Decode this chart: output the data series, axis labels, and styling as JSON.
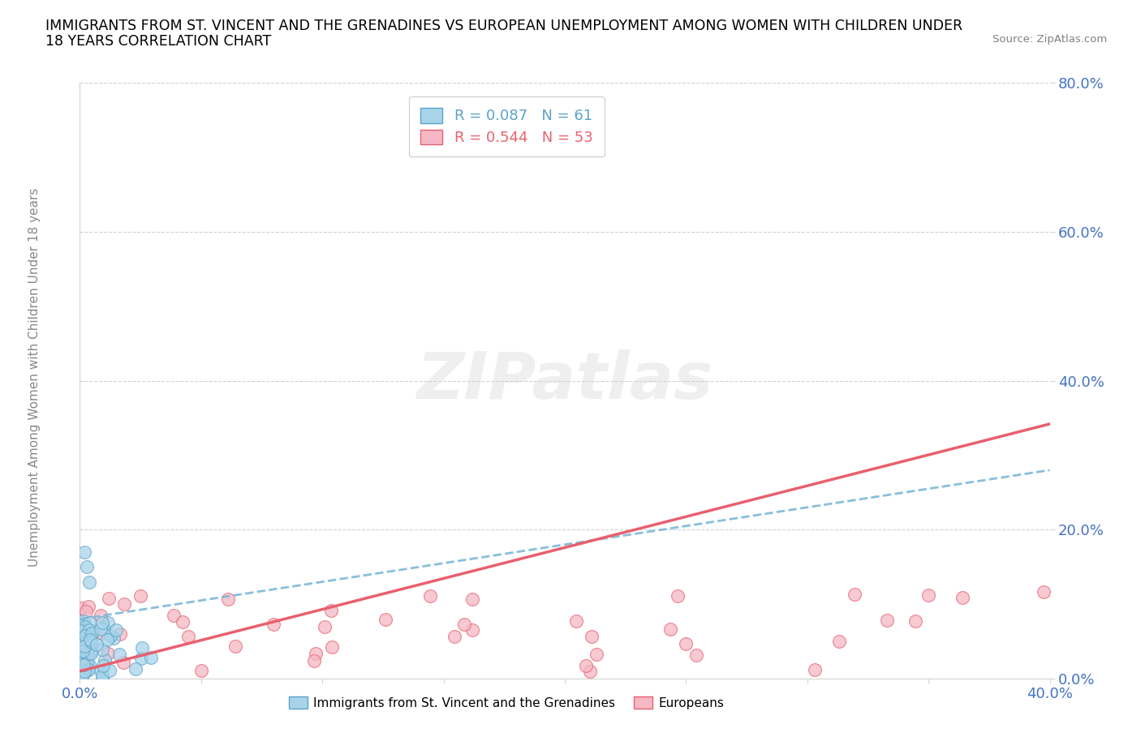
{
  "title_line1": "IMMIGRANTS FROM ST. VINCENT AND THE GRENADINES VS EUROPEAN UNEMPLOYMENT AMONG WOMEN WITH CHILDREN UNDER",
  "title_line2": "18 YEARS CORRELATION CHART",
  "source": "Source: ZipAtlas.com",
  "ylabel": "Unemployment Among Women with Children Under 18 years",
  "xlim": [
    0.0,
    0.4
  ],
  "ylim": [
    0.0,
    0.8
  ],
  "xticks": [
    0.0,
    0.05,
    0.1,
    0.15,
    0.2,
    0.25,
    0.3,
    0.35,
    0.4
  ],
  "yticks": [
    0.0,
    0.2,
    0.4,
    0.6,
    0.8
  ],
  "blue_R": 0.087,
  "blue_N": 61,
  "pink_R": 0.544,
  "pink_N": 53,
  "blue_color": "#a8d4ea",
  "pink_color": "#f5b8c4",
  "blue_edge_color": "#5ba3c9",
  "pink_edge_color": "#e8606e",
  "blue_line_color": "#7ab8d9",
  "pink_line_color": "#e8606e",
  "watermark": "ZIPatlas",
  "legend_label_blue": "Immigrants from St. Vincent and the Grenadines",
  "legend_label_pink": "Europeans",
  "tick_color": "#4472c4",
  "ylabel_color": "#888888",
  "grid_color": "#cccccc"
}
